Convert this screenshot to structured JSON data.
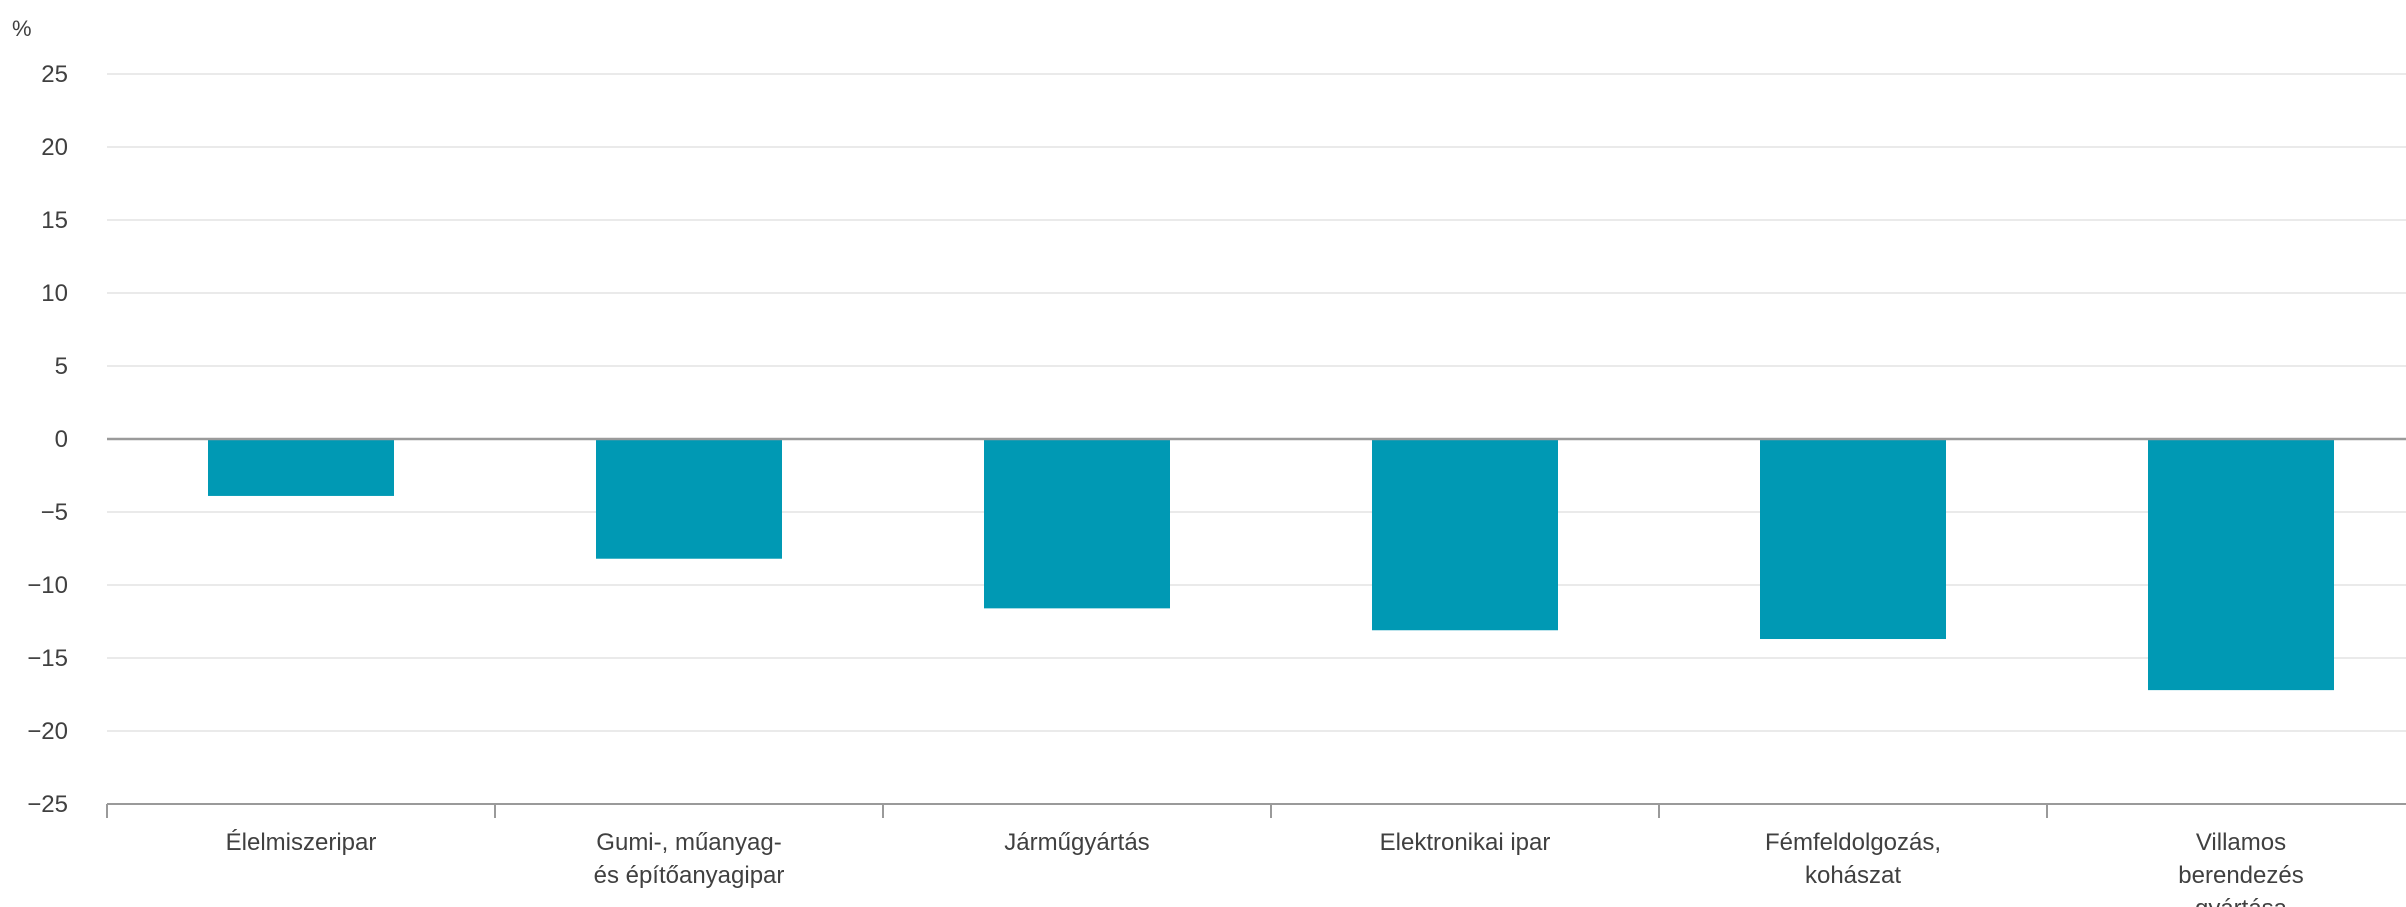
{
  "chart_data": {
    "type": "bar",
    "title": "",
    "unit_label": "%",
    "xlabel": "",
    "ylabel": "",
    "ylim": [
      -25,
      25
    ],
    "yticks": [
      25,
      20,
      15,
      10,
      5,
      0,
      -5,
      -10,
      -15,
      -20,
      -25
    ],
    "ytick_labels": [
      "25",
      "20",
      "15",
      "10",
      "5",
      "0",
      "−5",
      "−10",
      "−15",
      "−20",
      "−25"
    ],
    "grid": true,
    "legend": "none",
    "categories": [
      [
        "Élelmiszeripar"
      ],
      [
        "Gumi-, műanyag-",
        "és építőanyagipar"
      ],
      [
        "Járműgyártás"
      ],
      [
        "Elektronikai ipar"
      ],
      [
        "Fémfeldolgozás,",
        "kohászat"
      ],
      [
        "Villamos",
        "berendezés",
        "gyártása"
      ]
    ],
    "values": [
      -3.9,
      -8.2,
      -11.6,
      -13.1,
      -13.7,
      -17.2
    ],
    "colors": {
      "bar": "#0099b4",
      "grid": "#e3e3e3",
      "zero_line": "#9a9a9a",
      "axis": "#9a9a9a",
      "text": "#404040"
    }
  }
}
